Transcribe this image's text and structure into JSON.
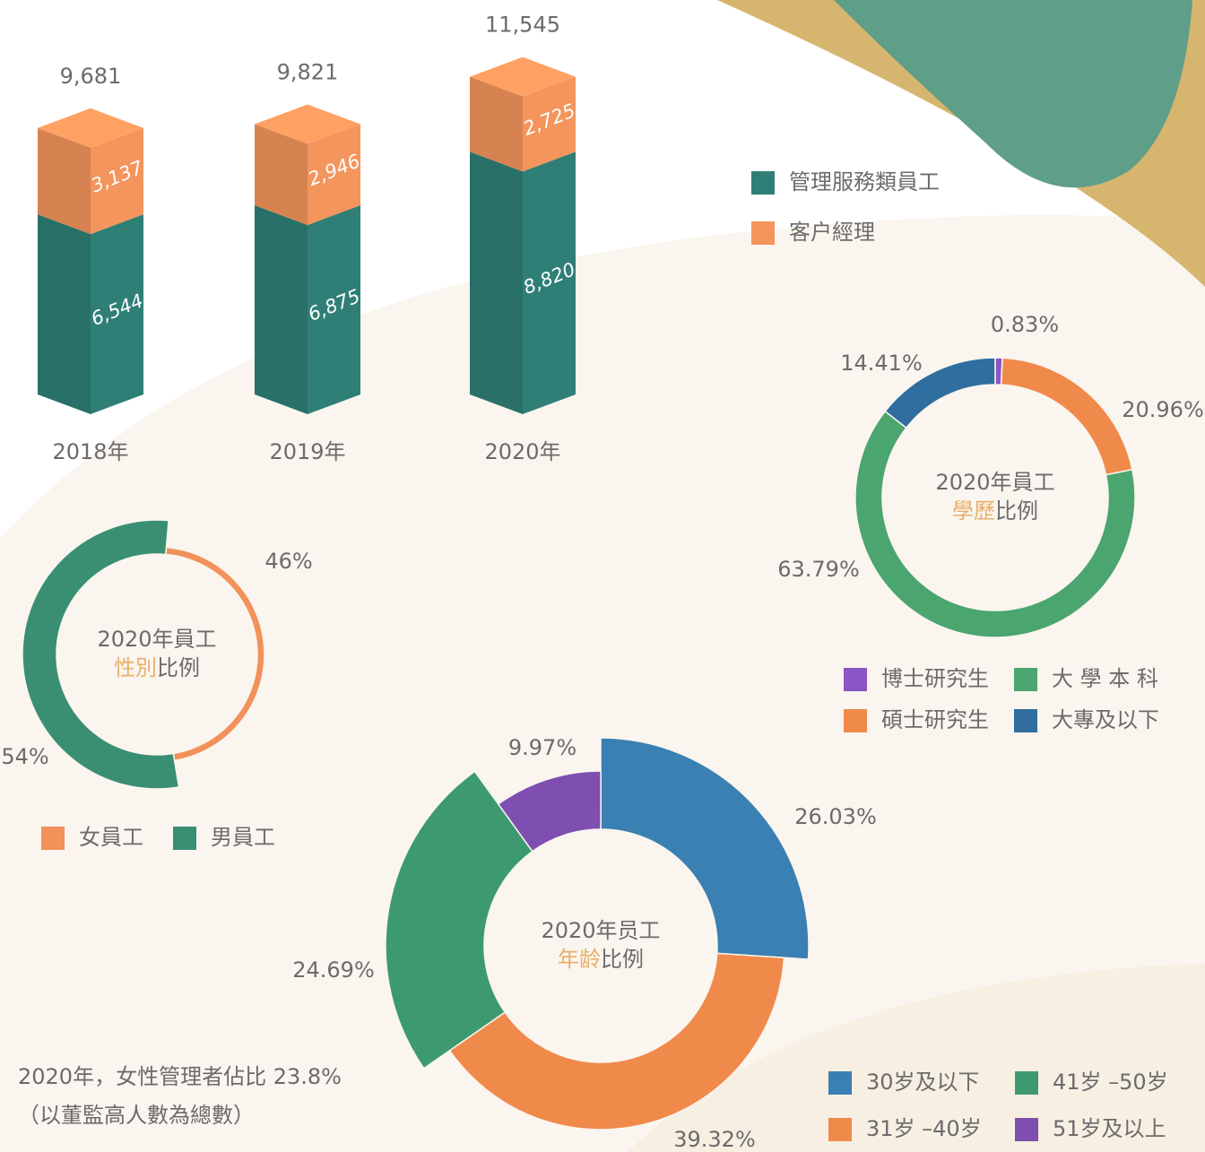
{
  "chart_data": [
    {
      "type": "bar",
      "stacked": true,
      "categories": [
        "2018年",
        "2019年",
        "2020年"
      ],
      "series": [
        {
          "name": "管理服務類員工",
          "color": "#2f7f76",
          "values": [
            6544,
            6875,
            8820
          ],
          "value_labels": [
            "6,544",
            "6,875",
            "8,820"
          ]
        },
        {
          "name": "客户經理",
          "color": "#f3955c",
          "values": [
            3137,
            2946,
            2725
          ],
          "value_labels": [
            "3,137",
            "2,946",
            "2,725"
          ]
        }
      ],
      "totals": [
        9681,
        9821,
        11545
      ],
      "total_labels": [
        "9,681",
        "9,821",
        "11,545"
      ]
    },
    {
      "type": "donut",
      "title": "2020年員工",
      "title_highlight": "性別",
      "title_rest": "比例",
      "categories": [
        "女員工",
        "男員工"
      ],
      "values": [
        46,
        54
      ],
      "value_labels": [
        "46%",
        "54%"
      ],
      "colors": [
        "#f2915a",
        "#3a8f73"
      ]
    },
    {
      "type": "donut",
      "title": "2020年員工",
      "title_highlight": "學歷",
      "title_rest": "比例",
      "categories": [
        "博士研究生",
        "碩士研究生",
        "大 學 本 科",
        "大專及以下"
      ],
      "values": [
        0.83,
        20.96,
        63.79,
        14.41
      ],
      "value_labels": [
        "0.83%",
        "20.96%",
        "63.79%",
        "14.41%"
      ],
      "colors": [
        "#8a55c4",
        "#f08a4b",
        "#4aa56e",
        "#2f6e9e"
      ]
    },
    {
      "type": "donut",
      "title": "2020年员工",
      "title_highlight": "年龄",
      "title_rest": "比例",
      "categories": [
        "30岁及以下",
        "31岁 –40岁",
        "41岁 –50岁",
        "51岁及以上"
      ],
      "values": [
        26.03,
        39.32,
        24.69,
        9.97
      ],
      "value_labels": [
        "26.03%",
        "39.32%",
        "24.69%",
        "9.97%"
      ],
      "colors": [
        "#3a80b2",
        "#f08a4b",
        "#3d9a70",
        "#7e4fb0"
      ]
    }
  ],
  "notes": [
    "2020年，女性管理者佔比 23.8%",
    "（以董監高人數為總數）"
  ]
}
